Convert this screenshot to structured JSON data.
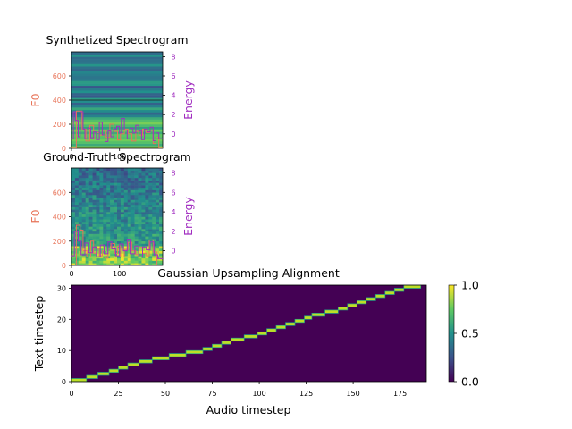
{
  "chart_data": [
    {
      "type": "heatmap",
      "title": "Synthetized Spectrogram",
      "left_axis": {
        "label": "F0",
        "ticks": [
          0,
          200,
          400,
          600
        ],
        "ylim": [
          0,
          800
        ],
        "color": "#e8755a"
      },
      "right_axis": {
        "label": "Energy",
        "ticks": [
          0,
          2,
          4,
          6,
          8
        ],
        "ylim": [
          -1.5,
          8.5
        ],
        "color": "#a12ec0"
      },
      "x_axis": {
        "ticks": [
          0,
          100
        ],
        "xlim": [
          0,
          190
        ]
      },
      "colormap": "viridis",
      "f0_series": [
        [
          0,
          0
        ],
        [
          10,
          0
        ],
        [
          10,
          310
        ],
        [
          22,
          310
        ],
        [
          22,
          160
        ],
        [
          30,
          160
        ],
        [
          30,
          60
        ],
        [
          38,
          60
        ],
        [
          38,
          190
        ],
        [
          46,
          190
        ],
        [
          46,
          80
        ],
        [
          52,
          80
        ],
        [
          52,
          130
        ],
        [
          58,
          130
        ],
        [
          58,
          110
        ],
        [
          64,
          110
        ],
        [
          64,
          150
        ],
        [
          72,
          150
        ],
        [
          72,
          90
        ],
        [
          80,
          90
        ],
        [
          80,
          200
        ],
        [
          88,
          200
        ],
        [
          88,
          140
        ],
        [
          96,
          140
        ],
        [
          96,
          70
        ],
        [
          102,
          70
        ],
        [
          102,
          120
        ],
        [
          110,
          120
        ],
        [
          110,
          160
        ],
        [
          118,
          160
        ],
        [
          118,
          120
        ],
        [
          126,
          120
        ],
        [
          126,
          60
        ],
        [
          134,
          60
        ],
        [
          134,
          140
        ],
        [
          140,
          140
        ],
        [
          140,
          110
        ],
        [
          148,
          110
        ],
        [
          148,
          160
        ],
        [
          156,
          160
        ],
        [
          156,
          130
        ],
        [
          164,
          130
        ],
        [
          164,
          150
        ],
        [
          170,
          150
        ],
        [
          170,
          40
        ],
        [
          176,
          40
        ],
        [
          176,
          90
        ],
        [
          182,
          90
        ],
        [
          182,
          0
        ],
        [
          190,
          0
        ]
      ],
      "energy_series": [
        [
          0,
          -0.5
        ],
        [
          4,
          -0.5
        ],
        [
          4,
          2.3
        ],
        [
          8,
          2.3
        ],
        [
          8,
          1.4
        ],
        [
          14,
          1.4
        ],
        [
          14,
          -0.3
        ],
        [
          18,
          -0.3
        ],
        [
          18,
          2.3
        ],
        [
          24,
          2.3
        ],
        [
          24,
          0.5
        ],
        [
          28,
          0.5
        ],
        [
          28,
          -0.5
        ],
        [
          34,
          -0.5
        ],
        [
          34,
          0.6
        ],
        [
          40,
          0.6
        ],
        [
          40,
          -0.4
        ],
        [
          46,
          -0.4
        ],
        [
          46,
          0.2
        ],
        [
          52,
          0.2
        ],
        [
          52,
          -0.6
        ],
        [
          58,
          -0.6
        ],
        [
          58,
          1.2
        ],
        [
          64,
          1.2
        ],
        [
          64,
          -0.1
        ],
        [
          70,
          -0.1
        ],
        [
          70,
          -0.8
        ],
        [
          76,
          -0.8
        ],
        [
          76,
          0.3
        ],
        [
          82,
          0.3
        ],
        [
          82,
          -0.3
        ],
        [
          88,
          -0.3
        ],
        [
          88,
          0.5
        ],
        [
          94,
          0.5
        ],
        [
          94,
          0.8
        ],
        [
          100,
          0.8
        ],
        [
          100,
          0.1
        ],
        [
          104,
          0.1
        ],
        [
          104,
          1.6
        ],
        [
          110,
          1.6
        ],
        [
          110,
          0.4
        ],
        [
          116,
          0.4
        ],
        [
          116,
          -0.5
        ],
        [
          122,
          -0.5
        ],
        [
          122,
          0.6
        ],
        [
          128,
          0.6
        ],
        [
          128,
          0.1
        ],
        [
          134,
          0.1
        ],
        [
          134,
          0.9
        ],
        [
          140,
          0.9
        ],
        [
          140,
          0.3
        ],
        [
          146,
          0.3
        ],
        [
          146,
          -0.6
        ],
        [
          152,
          -0.6
        ],
        [
          152,
          0.5
        ],
        [
          158,
          0.5
        ],
        [
          158,
          0.2
        ],
        [
          164,
          0.2
        ],
        [
          164,
          0.7
        ],
        [
          170,
          0.7
        ],
        [
          170,
          -0.7
        ],
        [
          176,
          -0.7
        ],
        [
          176,
          0.1
        ],
        [
          182,
          0.1
        ],
        [
          182,
          -0.5
        ],
        [
          190,
          -0.5
        ]
      ]
    },
    {
      "type": "heatmap",
      "title": "Ground-Truth Spectrogram",
      "left_axis": {
        "label": "F0",
        "ticks": [
          0,
          200,
          400,
          600
        ],
        "ylim": [
          0,
          800
        ],
        "color": "#e8755a"
      },
      "right_axis": {
        "label": "Energy",
        "ticks": [
          0,
          2,
          4,
          6,
          8
        ],
        "ylim": [
          -1.5,
          8.5
        ],
        "color": "#a12ec0"
      },
      "x_axis": {
        "ticks": [
          0,
          100
        ],
        "xlim": [
          0,
          190
        ]
      },
      "colormap": "viridis",
      "f0_series": [
        [
          0,
          0
        ],
        [
          10,
          0
        ],
        [
          10,
          330
        ],
        [
          18,
          330
        ],
        [
          18,
          290
        ],
        [
          24,
          290
        ],
        [
          24,
          120
        ],
        [
          32,
          120
        ],
        [
          32,
          70
        ],
        [
          40,
          70
        ],
        [
          40,
          200
        ],
        [
          46,
          200
        ],
        [
          46,
          100
        ],
        [
          52,
          100
        ],
        [
          52,
          140
        ],
        [
          58,
          140
        ],
        [
          58,
          80
        ],
        [
          64,
          80
        ],
        [
          64,
          120
        ],
        [
          70,
          120
        ],
        [
          70,
          60
        ],
        [
          76,
          60
        ],
        [
          76,
          140
        ],
        [
          82,
          140
        ],
        [
          82,
          180
        ],
        [
          90,
          180
        ],
        [
          90,
          100
        ],
        [
          96,
          100
        ],
        [
          96,
          160
        ],
        [
          102,
          160
        ],
        [
          102,
          70
        ],
        [
          110,
          70
        ],
        [
          110,
          130
        ],
        [
          118,
          130
        ],
        [
          118,
          190
        ],
        [
          126,
          190
        ],
        [
          126,
          120
        ],
        [
          134,
          120
        ],
        [
          134,
          90
        ],
        [
          140,
          90
        ],
        [
          140,
          150
        ],
        [
          148,
          150
        ],
        [
          148,
          100
        ],
        [
          156,
          100
        ],
        [
          156,
          80
        ],
        [
          162,
          80
        ],
        [
          162,
          210
        ],
        [
          170,
          210
        ],
        [
          170,
          110
        ],
        [
          178,
          110
        ],
        [
          178,
          0
        ],
        [
          190,
          0
        ]
      ],
      "energy_series": [
        [
          0,
          -0.5
        ],
        [
          6,
          -0.5
        ],
        [
          6,
          2.0
        ],
        [
          14,
          2.0
        ],
        [
          14,
          1.0
        ],
        [
          20,
          1.0
        ],
        [
          20,
          -0.4
        ],
        [
          28,
          -0.4
        ],
        [
          28,
          0.8
        ],
        [
          36,
          0.8
        ],
        [
          36,
          -0.2
        ],
        [
          44,
          -0.2
        ],
        [
          44,
          0.4
        ],
        [
          52,
          0.4
        ],
        [
          52,
          -0.6
        ],
        [
          60,
          -0.6
        ],
        [
          60,
          0.6
        ],
        [
          68,
          0.6
        ],
        [
          68,
          -0.3
        ],
        [
          76,
          -0.3
        ],
        [
          76,
          0.9
        ],
        [
          84,
          0.9
        ],
        [
          84,
          0.2
        ],
        [
          92,
          0.2
        ],
        [
          92,
          -0.5
        ],
        [
          100,
          -0.5
        ],
        [
          100,
          0.7
        ],
        [
          108,
          0.7
        ],
        [
          108,
          0.0
        ],
        [
          116,
          0.0
        ],
        [
          116,
          1.2
        ],
        [
          124,
          1.2
        ],
        [
          124,
          -0.3
        ],
        [
          132,
          -0.3
        ],
        [
          132,
          0.5
        ],
        [
          140,
          0.5
        ],
        [
          140,
          -0.6
        ],
        [
          148,
          -0.6
        ],
        [
          148,
          0.4
        ],
        [
          156,
          0.4
        ],
        [
          156,
          0.1
        ],
        [
          164,
          0.1
        ],
        [
          164,
          0.9
        ],
        [
          172,
          0.9
        ],
        [
          172,
          -0.4
        ],
        [
          180,
          -0.4
        ],
        [
          180,
          -0.8
        ],
        [
          190,
          -0.8
        ]
      ]
    },
    {
      "type": "heatmap",
      "title": "Gaussian Upsampling Alignment",
      "xlabel": "Audio timestep",
      "ylabel": "Text timestep",
      "xlim": [
        0,
        189
      ],
      "ylim": [
        0,
        31
      ],
      "x_ticks": [
        0,
        25,
        50,
        75,
        100,
        125,
        150,
        175
      ],
      "y_ticks": [
        0,
        10,
        20,
        30
      ],
      "colorbar": {
        "ticks": [
          "0.0",
          "0.5",
          "1.0"
        ],
        "range": [
          0,
          1
        ]
      },
      "alignment_segments": [
        [
          0,
          8,
          0
        ],
        [
          8,
          14,
          1
        ],
        [
          14,
          20,
          2
        ],
        [
          20,
          25,
          3
        ],
        [
          25,
          30,
          4
        ],
        [
          30,
          36,
          5
        ],
        [
          36,
          43,
          6
        ],
        [
          43,
          52,
          7
        ],
        [
          52,
          61,
          8
        ],
        [
          61,
          70,
          9
        ],
        [
          70,
          75,
          10
        ],
        [
          75,
          80,
          11
        ],
        [
          80,
          85,
          12
        ],
        [
          85,
          92,
          13
        ],
        [
          92,
          99,
          14
        ],
        [
          99,
          104,
          15
        ],
        [
          104,
          109,
          16
        ],
        [
          109,
          114,
          17
        ],
        [
          114,
          119,
          18
        ],
        [
          119,
          124,
          19
        ],
        [
          124,
          128,
          20
        ],
        [
          128,
          135,
          21
        ],
        [
          135,
          142,
          22
        ],
        [
          142,
          147,
          23
        ],
        [
          147,
          152,
          24
        ],
        [
          152,
          157,
          25
        ],
        [
          157,
          162,
          26
        ],
        [
          162,
          167,
          27
        ],
        [
          167,
          172,
          28
        ],
        [
          172,
          177,
          29
        ],
        [
          177,
          186,
          30
        ]
      ]
    }
  ]
}
